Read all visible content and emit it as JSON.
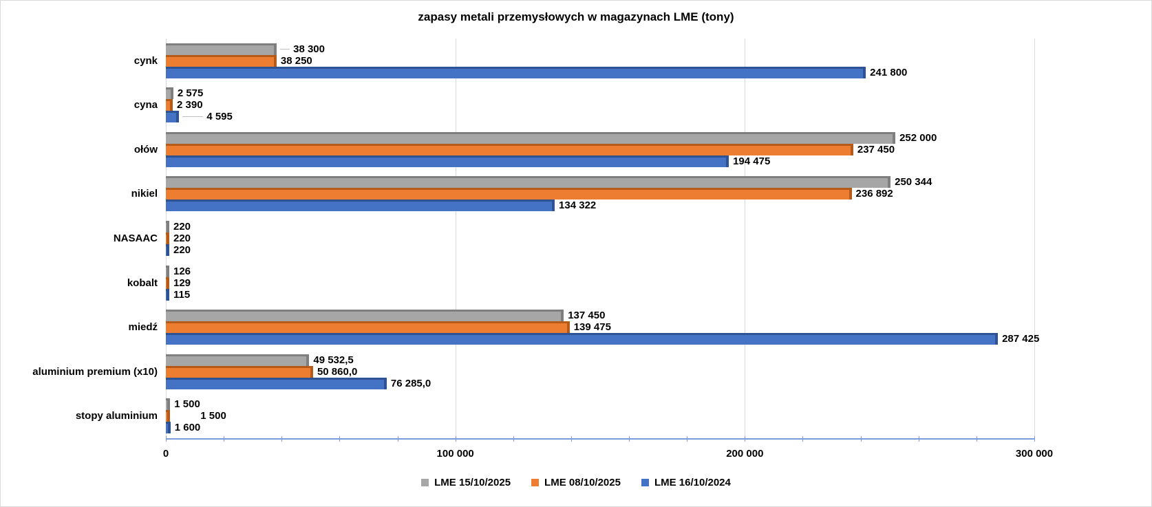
{
  "chart_data": {
    "type": "bar",
    "orientation": "horizontal",
    "title": "zapasy metali przemysłowych w magazynach LME (tony)",
    "categories": [
      "cynk",
      "cyna",
      "ołów",
      "nikiel",
      "NASAAC",
      "kobalt",
      "miedź",
      "aluminium premium (x10)",
      "stopy aluminium"
    ],
    "series": [
      {
        "name": "LME 15/10/2025",
        "color": "#A6A6A6",
        "color_dark": "#7F7F7F",
        "values": [
          38300,
          2575,
          252000,
          250344,
          220,
          126,
          137450,
          49532.5,
          1500
        ],
        "labels": [
          "38 300",
          "2 575",
          "252 000",
          "250 344",
          "220",
          "126",
          "137 450",
          "49 532,5",
          "1 500"
        ]
      },
      {
        "name": "LME 08/10/2025",
        "color": "#ED7D31",
        "color_dark": "#B55A19",
        "values": [
          38250,
          2390,
          237450,
          236892,
          220,
          129,
          139475,
          50860.0,
          1500
        ],
        "labels": [
          "38 250",
          "2 390",
          "237 450",
          "236 892",
          "220",
          "129",
          "139 475",
          "50 860,0",
          "1 500"
        ]
      },
      {
        "name": "LME 16/10/2024",
        "color": "#4472C4",
        "color_dark": "#2E5395",
        "values": [
          241800,
          4595,
          194475,
          134322,
          220,
          115,
          287425,
          76285.0,
          1600
        ],
        "labels": [
          "241 800",
          "4 595",
          "194 475",
          "134 322",
          "220",
          "115",
          "287 425",
          "76 285,0",
          "1 600"
        ]
      }
    ],
    "x_axis": {
      "min": 0,
      "max": 300000,
      "tick_values": [
        0,
        100000,
        200000,
        300000
      ],
      "tick_labels": [
        "0",
        "100 000",
        "200 000",
        "300 000"
      ],
      "minor_tick_interval": 20000,
      "axis_color": "#7C9BD8",
      "gridline_color": "#D9D9D9",
      "gridlines": true
    },
    "legend_position": "bottom",
    "colors": {
      "background": "#FFFFFF",
      "text": "#000000",
      "leader_line": "#BFBFBF"
    }
  }
}
